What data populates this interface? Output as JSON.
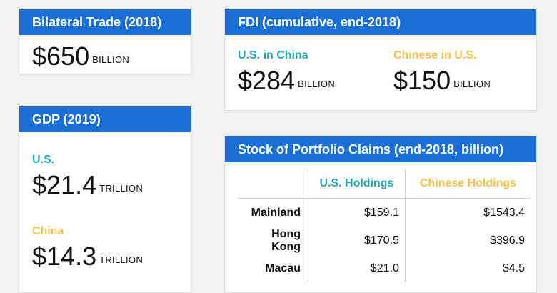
{
  "trade": {
    "title": "Bilateral Trade (2018)",
    "value": "$650",
    "unit": "BILLION"
  },
  "fdi": {
    "title": "FDI (cumulative, end-2018)",
    "us_label": "U.S. in China",
    "us_value": "$284",
    "us_unit": "BILLION",
    "cn_label": "Chinese in U.S.",
    "cn_value": "$150",
    "cn_unit": "BILLION"
  },
  "gdp": {
    "title": "GDP (2019)",
    "us_label": "U.S.",
    "us_value": "$21.4",
    "us_unit": "TRILLION",
    "cn_label": "China",
    "cn_value": "$14.3",
    "cn_unit": "TRILLION"
  },
  "portfolio": {
    "title": "Stock of Portfolio Claims (end-2018, billion)",
    "col_us": "U.S. Holdings",
    "col_cn": "Chinese Holdings",
    "rows": [
      {
        "label": "Mainland",
        "us": "$159.1",
        "cn": "$1543.4"
      },
      {
        "label": "Hong Kong",
        "us": "$170.5",
        "cn": "$396.9"
      },
      {
        "label": "Macau",
        "us": "$21.0",
        "cn": "$4.5"
      }
    ]
  },
  "colors": {
    "header_blue": "#1a6fd6",
    "accent_teal": "#21a6b6",
    "accent_gold": "#f3c14a"
  }
}
